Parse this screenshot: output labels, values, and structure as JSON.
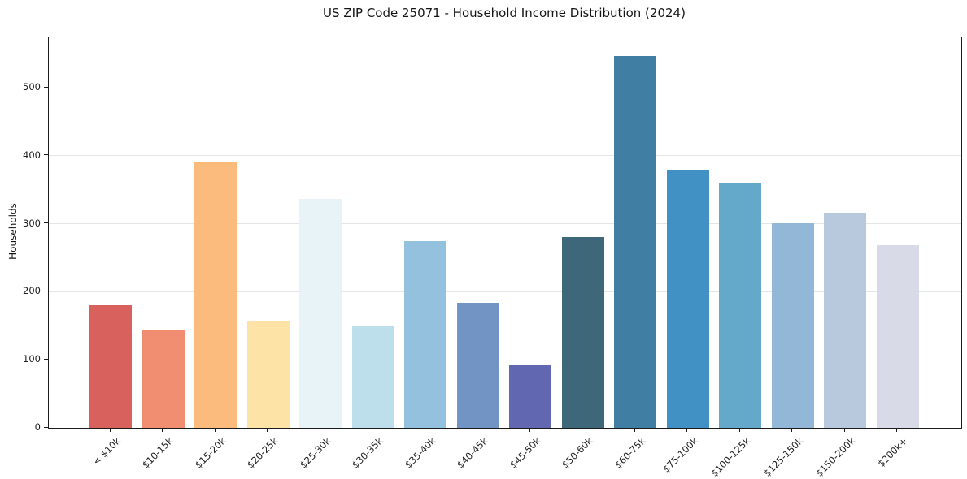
{
  "chart_data": {
    "type": "bar",
    "title": "US ZIP Code 25071 - Household Income Distribution (2024)",
    "xlabel": "",
    "ylabel": "Households",
    "categories": [
      "< $10k",
      "$10-15k",
      "$15-20k",
      "$20-25k",
      "$25-30k",
      "$30-35k",
      "$35-40k",
      "$40-45k",
      "$45-50k",
      "$50-60k",
      "$60-75k",
      "$75-100k",
      "$100-125k",
      "$125-150k",
      "$150-200k",
      "$200k+"
    ],
    "values": [
      180,
      145,
      390,
      156,
      337,
      150,
      274,
      184,
      93,
      280,
      547,
      379,
      361,
      301,
      316,
      268
    ],
    "bar_colors": [
      "#d65b57",
      "#f0886a",
      "#fbb878",
      "#fde3a2",
      "#e7f2f7",
      "#badeeb",
      "#8fbedd",
      "#6b90c3",
      "#5b61ae",
      "#366275",
      "#38799f",
      "#3a8cc3",
      "#5fa6c8",
      "#8fb4d4",
      "#b5c7dd",
      "#d6d9e6"
    ],
    "yticks": [
      0,
      100,
      200,
      300,
      400,
      500
    ],
    "ylim": [
      0,
      574
    ],
    "grid": "horizontal",
    "grid_color": "#e2e6e8",
    "legend": "none",
    "background": "#ffffff",
    "spine_color": "#1c1c1c",
    "text_color": "#202020"
  }
}
